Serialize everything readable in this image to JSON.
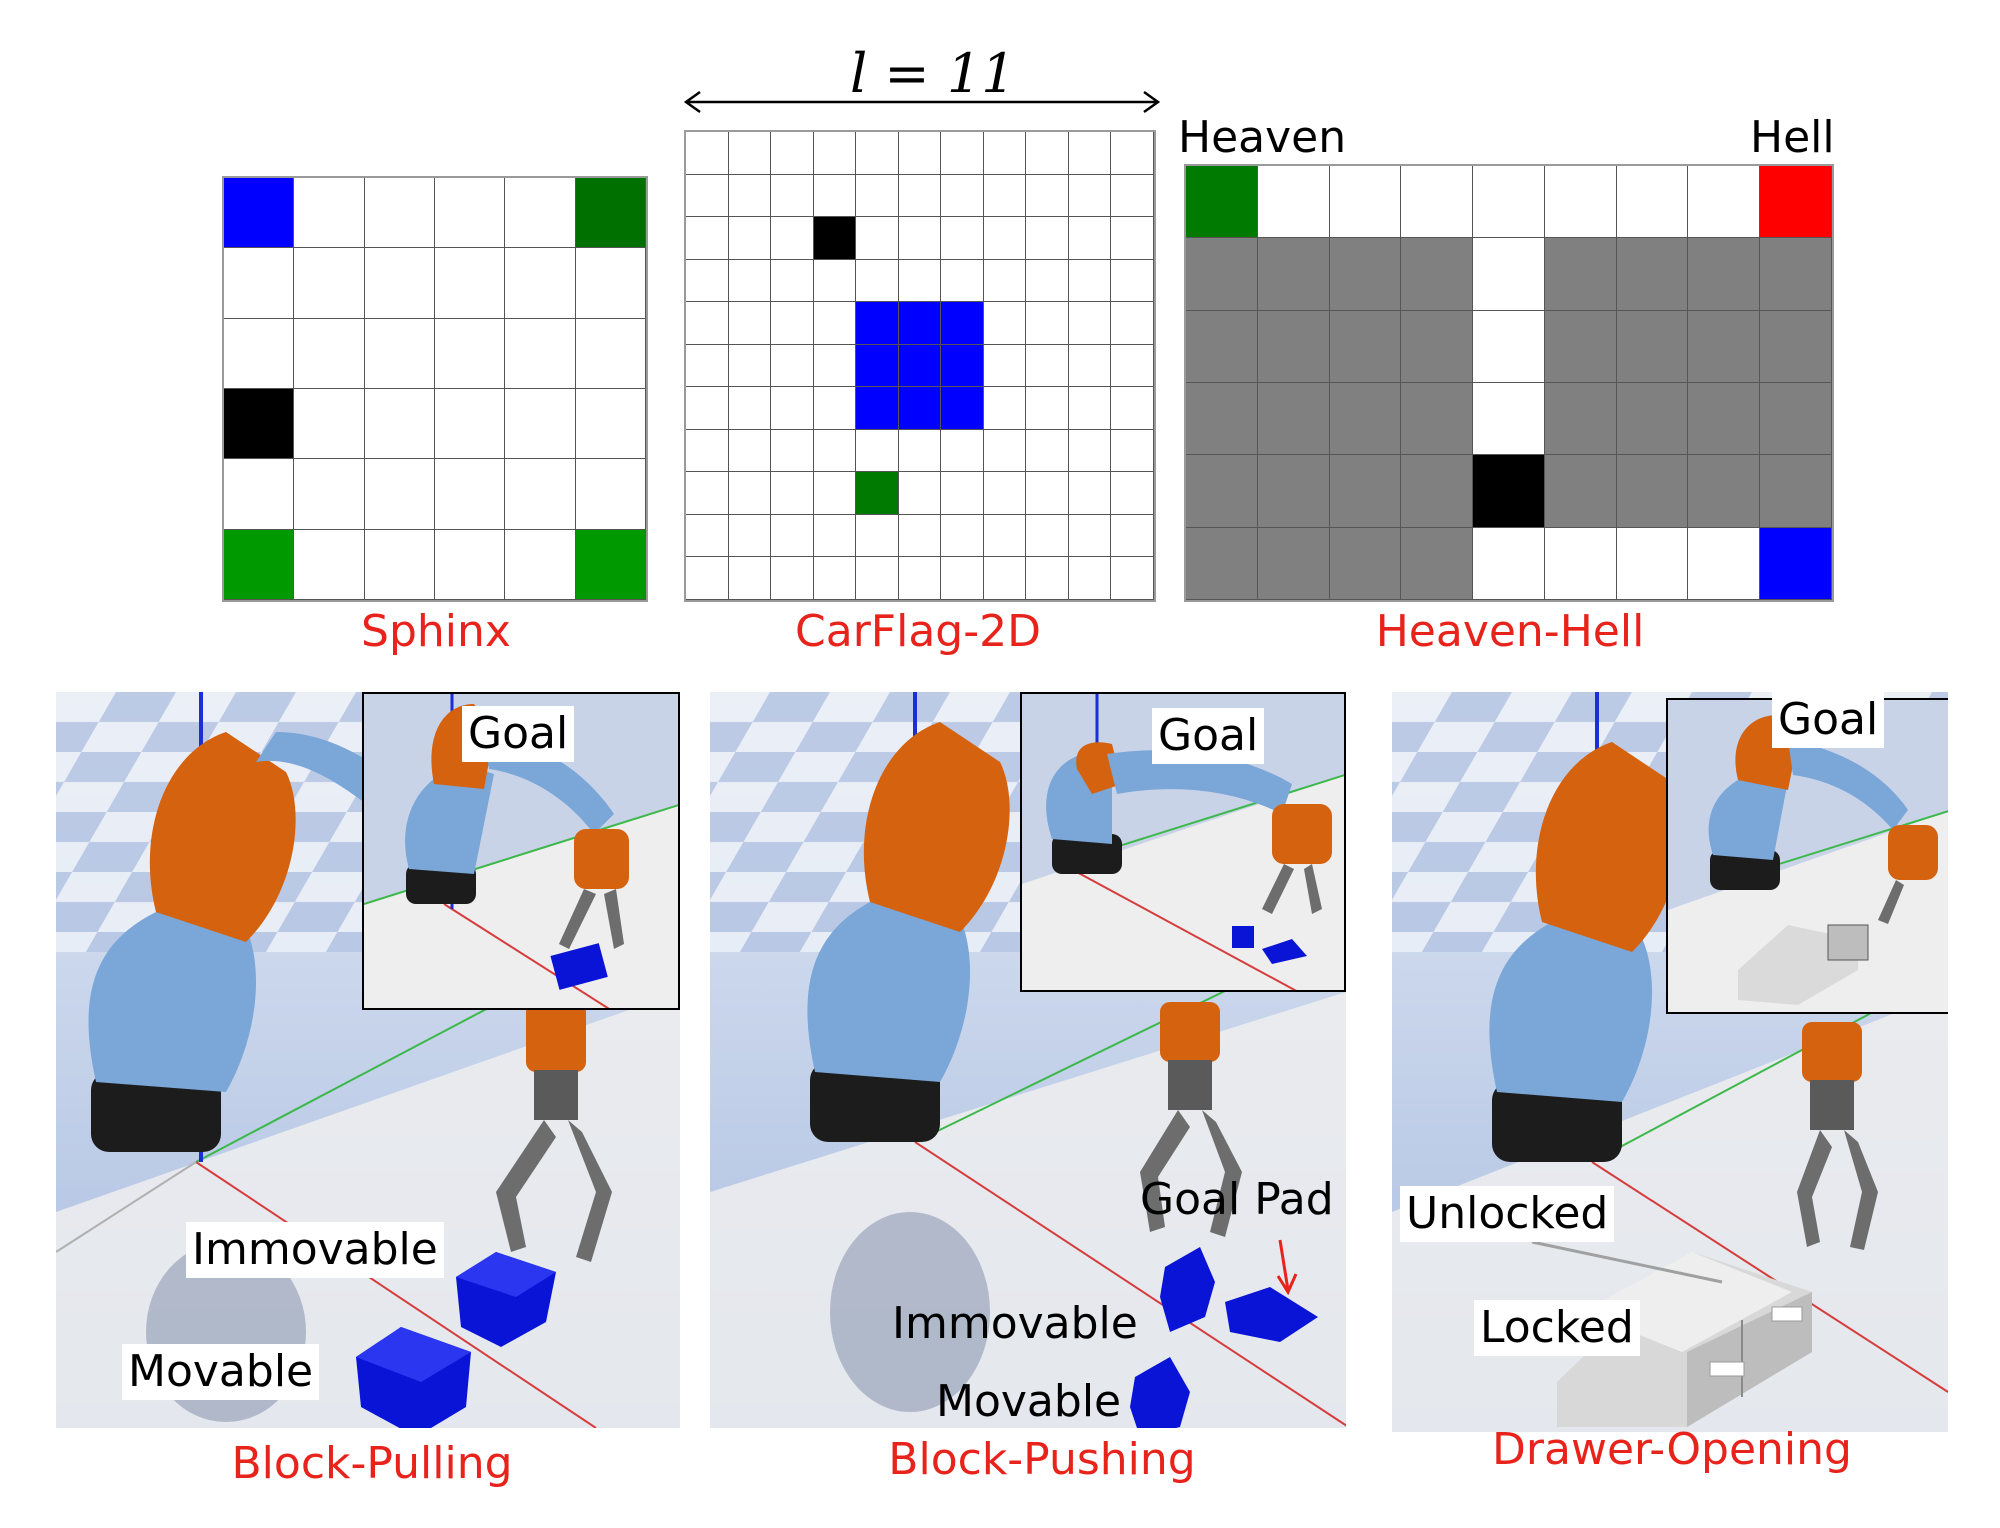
{
  "dimension_label": "l = 11",
  "grids": {
    "sphinx": {
      "caption": "Sphinx",
      "rows": 6,
      "cols": 6,
      "colored": [
        {
          "r": 0,
          "c": 0,
          "color": "#0000ff"
        },
        {
          "r": 0,
          "c": 5,
          "color": "#007000"
        },
        {
          "r": 3,
          "c": 0,
          "color": "#000000"
        },
        {
          "r": 5,
          "c": 0,
          "color": "#009a00"
        },
        {
          "r": 5,
          "c": 5,
          "color": "#009a00"
        }
      ]
    },
    "carflag": {
      "caption": "CarFlag-2D",
      "rows": 11,
      "cols": 11,
      "colored": [
        {
          "r": 2,
          "c": 3,
          "color": "#000000"
        },
        {
          "r": 4,
          "c": 4,
          "color": "#0000ff"
        },
        {
          "r": 4,
          "c": 5,
          "color": "#0000ff"
        },
        {
          "r": 4,
          "c": 6,
          "color": "#0000ff"
        },
        {
          "r": 5,
          "c": 4,
          "color": "#0000ff"
        },
        {
          "r": 5,
          "c": 5,
          "color": "#0000ff"
        },
        {
          "r": 5,
          "c": 6,
          "color": "#0000ff"
        },
        {
          "r": 6,
          "c": 4,
          "color": "#0000ff"
        },
        {
          "r": 6,
          "c": 5,
          "color": "#0000ff"
        },
        {
          "r": 6,
          "c": 6,
          "color": "#0000ff"
        },
        {
          "r": 8,
          "c": 4,
          "color": "#007a00"
        }
      ]
    },
    "heavenhell": {
      "caption": "Heaven-Hell",
      "rows": 6,
      "cols": 9,
      "left_label": "Heaven",
      "right_label": "Hell",
      "colored": [
        {
          "r": 0,
          "c": 0,
          "color": "#007a00"
        },
        {
          "r": 0,
          "c": 8,
          "color": "#ff0000"
        },
        {
          "r": 4,
          "c": 4,
          "color": "#000000"
        },
        {
          "r": 5,
          "c": 8,
          "color": "#0000ff"
        }
      ],
      "gray_rows": [
        1,
        2,
        3,
        4
      ],
      "gray_cols_bottom": [
        0,
        1,
        2,
        3
      ],
      "corridor_col": 4,
      "gray_color": "#808080"
    }
  },
  "panels": {
    "pulling": {
      "caption": "Block-Pulling",
      "goal": "Goal",
      "labels": [
        "Immovable",
        "Movable"
      ]
    },
    "pushing": {
      "caption": "Block-Pushing",
      "goal": "Goal",
      "labels": [
        "Goal Pad",
        "Immovable",
        "Movable"
      ]
    },
    "drawer": {
      "caption": "Drawer-Opening",
      "goal": "Goal",
      "labels": [
        "Unlocked",
        "Locked"
      ]
    }
  },
  "colors": {
    "caption": "#e8231b",
    "robot_orange": "#d4620e",
    "robot_blue": "#7aa6d8",
    "block": "#0a14d6"
  }
}
